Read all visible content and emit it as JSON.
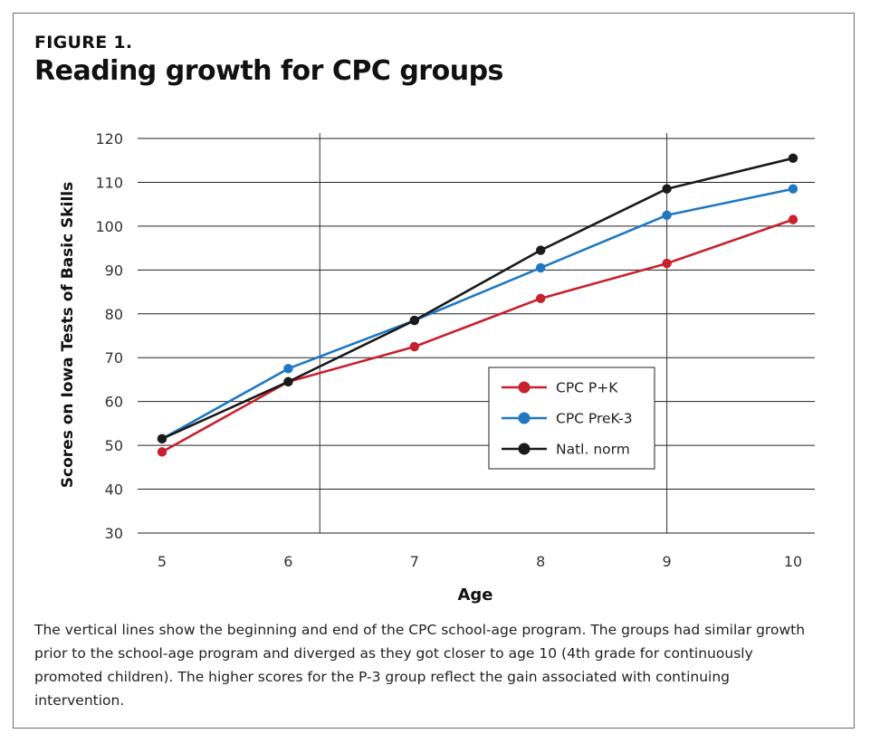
{
  "figure_label": "FIGURE 1.",
  "figure_title": "Reading growth for CPC groups",
  "caption": "The vertical lines show the beginning and end of the CPC school-age program. The groups had similar growth prior to the school-age program and diverged as they got closer to age 10 (4th grade for continuously promoted children). The higher scores for the P-3 group reflect the gain associated with continuing intervention.",
  "chart_data": {
    "type": "line",
    "title": "Reading growth for CPC groups",
    "xlabel": "Age",
    "ylabel": "Scores on Iowa Tests of Basic Skills",
    "x": [
      5,
      6,
      7,
      8,
      9,
      10
    ],
    "x_tick_labels": [
      "5",
      "6",
      "7",
      "8",
      "9",
      "10"
    ],
    "ylim": [
      30,
      120
    ],
    "y_ticks": [
      30,
      40,
      50,
      60,
      70,
      80,
      90,
      100,
      110,
      120
    ],
    "y_tick_labels": [
      "30",
      "40",
      "50",
      "60",
      "70",
      "80",
      "90",
      "100",
      "110",
      "120"
    ],
    "vertical_lines_at_age": [
      6.25,
      9
    ],
    "grid": "horizontal",
    "legend_position": "lower-right",
    "series": [
      {
        "name": "CPC P+K",
        "color": "#c8202e",
        "values": [
          48.5,
          64.5,
          72.5,
          83.5,
          91.5,
          101.5
        ]
      },
      {
        "name": "CPC PreK-3",
        "color": "#1f78c1",
        "values": [
          51.5,
          67.5,
          78.5,
          90.5,
          102.5,
          108.5
        ]
      },
      {
        "name": "Natl. norm",
        "color": "#1a1a1a",
        "values": [
          51.5,
          64.5,
          78.5,
          94.5,
          108.5,
          115.5
        ]
      }
    ]
  }
}
